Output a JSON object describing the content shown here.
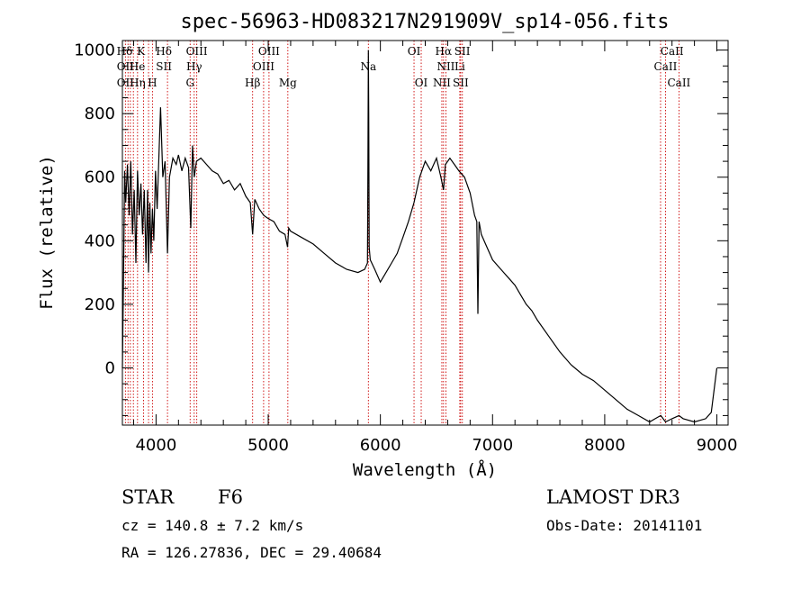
{
  "chart_data": {
    "type": "line",
    "title": "spec-56963-HD083217N291909V_sp14-056.fits",
    "xlabel": "Wavelength (Å)",
    "ylabel": "Flux (relative)",
    "xlim": [
      3700,
      9100
    ],
    "ylim": [
      -180,
      1030
    ],
    "x_ticks": [
      4000,
      5000,
      6000,
      7000,
      8000,
      9000
    ],
    "y_ticks": [
      0,
      200,
      400,
      600,
      800,
      1000
    ],
    "grid": false,
    "series": [
      {
        "x": [
          3700,
          3710,
          3720,
          3730,
          3745,
          3760,
          3775,
          3790,
          3805,
          3820,
          3835,
          3850,
          3865,
          3880,
          3895,
          3910,
          3925,
          3933,
          3945,
          3955,
          3968,
          3980,
          3995,
          4010,
          4025,
          4040,
          4060,
          4080,
          4102,
          4120,
          4150,
          4180,
          4200,
          4230,
          4260,
          4290,
          4310,
          4325,
          4340,
          4360,
          4400,
          4450,
          4500,
          4550,
          4600,
          4650,
          4700,
          4750,
          4800,
          4840,
          4861,
          4880,
          4920,
          4960,
          5000,
          5050,
          5100,
          5150,
          5172,
          5183,
          5200,
          5300,
          5400,
          5500,
          5600,
          5700,
          5800,
          5860,
          5885,
          5890,
          5893,
          5896,
          5900,
          5910,
          5950,
          6000,
          6050,
          6100,
          6150,
          6200,
          6250,
          6300,
          6350,
          6400,
          6450,
          6500,
          6540,
          6563,
          6580,
          6620,
          6660,
          6700,
          6750,
          6800,
          6840,
          6860,
          6869,
          6880,
          6900,
          6950,
          7000,
          7050,
          7100,
          7150,
          7200,
          7250,
          7300,
          7350,
          7400,
          7500,
          7600,
          7700,
          7800,
          7900,
          8000,
          8100,
          8200,
          8300,
          8400,
          8450,
          8500,
          8542,
          8600,
          8662,
          8700,
          8800,
          8900,
          8950,
          9000
        ],
        "y": [
          0,
          280,
          620,
          520,
          640,
          480,
          650,
          420,
          560,
          330,
          620,
          480,
          580,
          420,
          560,
          330,
          560,
          300,
          520,
          360,
          500,
          400,
          620,
          500,
          660,
          820,
          600,
          650,
          360,
          600,
          660,
          640,
          670,
          620,
          660,
          630,
          440,
          700,
          600,
          650,
          660,
          640,
          620,
          610,
          580,
          590,
          560,
          580,
          540,
          520,
          420,
          530,
          500,
          480,
          470,
          460,
          430,
          420,
          380,
          440,
          430,
          410,
          390,
          360,
          330,
          310,
          300,
          310,
          330,
          700,
          1000,
          800,
          380,
          340,
          310,
          270,
          300,
          330,
          360,
          410,
          460,
          520,
          600,
          650,
          620,
          660,
          600,
          560,
          640,
          660,
          640,
          620,
          600,
          550,
          480,
          460,
          170,
          460,
          420,
          380,
          340,
          320,
          300,
          280,
          260,
          230,
          200,
          180,
          150,
          100,
          50,
          10,
          -20,
          -40,
          -70,
          -100,
          -130,
          -150,
          -170,
          -160,
          -150,
          -170,
          -160,
          -150,
          -160,
          -170,
          -160,
          -140,
          0
        ]
      }
    ],
    "spectral_lines": [
      {
        "label": "Hδ",
        "x": 3720,
        "row": 0
      },
      {
        "label": "K",
        "x": 3865,
        "row": 0
      },
      {
        "label": "Hδ",
        "x": 4070,
        "row": 0
      },
      {
        "label": "OIII",
        "x": 4363,
        "row": 0
      },
      {
        "label": "OIII",
        "x": 5007,
        "row": 0
      },
      {
        "label": "OI",
        "x": 6300,
        "row": 0
      },
      {
        "label": "Hα",
        "x": 6563,
        "row": 0
      },
      {
        "label": "SII",
        "x": 6730,
        "row": 0
      },
      {
        "label": "CaII",
        "x": 8600,
        "row": 0
      },
      {
        "label": "OII",
        "x": 3727,
        "row": 1
      },
      {
        "label": "He",
        "x": 3833,
        "row": 1
      },
      {
        "label": "SII",
        "x": 4070,
        "row": 1
      },
      {
        "label": "Hγ",
        "x": 4340,
        "row": 1
      },
      {
        "label": "OIII",
        "x": 4959,
        "row": 1
      },
      {
        "label": "Na",
        "x": 5893,
        "row": 1
      },
      {
        "label": "NII",
        "x": 6584,
        "row": 1
      },
      {
        "label": "Li",
        "x": 6708,
        "row": 1
      },
      {
        "label": "CaII",
        "x": 8542,
        "row": 1
      },
      {
        "label": "OII",
        "x": 3727,
        "row": 2
      },
      {
        "label": "Hη",
        "x": 3835,
        "row": 2
      },
      {
        "label": "H",
        "x": 3968,
        "row": 2
      },
      {
        "label": "G",
        "x": 4304,
        "row": 2
      },
      {
        "label": "Hβ",
        "x": 4861,
        "row": 2
      },
      {
        "label": "Mg",
        "x": 5175,
        "row": 2
      },
      {
        "label": "OI",
        "x": 6364,
        "row": 2
      },
      {
        "label": "NII",
        "x": 6548,
        "row": 2
      },
      {
        "label": "SII",
        "x": 6716,
        "row": 2
      },
      {
        "label": "CaII",
        "x": 8662,
        "row": 2
      }
    ],
    "line_marks": [
      3727,
      3750,
      3771,
      3798,
      3835,
      3889,
      3933,
      3968,
      4102,
      4304,
      4340,
      4363,
      4861,
      4959,
      5007,
      5175,
      5893,
      6300,
      6364,
      6548,
      6563,
      6584,
      6708,
      6716,
      6731,
      8498,
      8542,
      8662
    ],
    "line_color": "#cc0000"
  },
  "info": {
    "object_class": "STAR",
    "subclass": "F6",
    "survey": "LAMOST DR3",
    "cz": "cz = 140.8 ± 7.2 km/s",
    "obs_date": "Obs-Date: 20141101",
    "coords": "RA = 126.27836, DEC =  29.40684"
  }
}
